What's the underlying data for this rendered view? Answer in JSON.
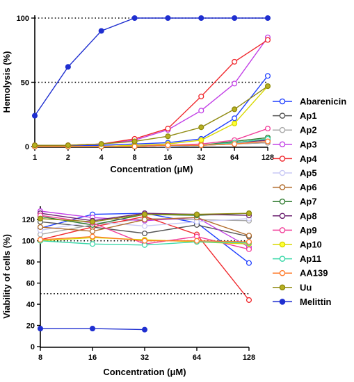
{
  "charts": [
    {
      "type": "line",
      "xlabel": "Concentration (μM)",
      "ylabel": "Hemolysis (%)",
      "xscale": "log2",
      "x_ticks": [
        "1",
        "2",
        "4",
        "8",
        "16",
        "32",
        "64",
        "128"
      ],
      "y_ticks": [
        "0",
        "50",
        "100"
      ],
      "ylim": [
        0,
        100
      ],
      "reference_lines": [
        50,
        100
      ],
      "series": [
        {
          "name": "Abarenicin",
          "x": [
            1,
            2,
            4,
            8,
            16,
            32,
            64,
            128
          ],
          "values": [
            0.5,
            0.5,
            1,
            2,
            3,
            6,
            22,
            55
          ]
        },
        {
          "name": "Ap1",
          "x": [
            1,
            2,
            4,
            8,
            16,
            32,
            64,
            128
          ],
          "values": [
            0,
            0,
            0,
            0,
            0,
            1,
            2,
            3
          ]
        },
        {
          "name": "Ap2",
          "x": [
            1,
            2,
            4,
            8,
            16,
            32,
            64,
            128
          ],
          "values": [
            0,
            0,
            0,
            0,
            0,
            1,
            2,
            3
          ]
        },
        {
          "name": "Ap3",
          "x": [
            1,
            2,
            4,
            8,
            16,
            32,
            64,
            128
          ],
          "values": [
            1,
            1,
            2,
            5,
            13,
            28,
            49,
            85
          ]
        },
        {
          "name": "Ap4",
          "x": [
            1,
            2,
            4,
            8,
            16,
            32,
            64,
            128
          ],
          "values": [
            1,
            1,
            2,
            6,
            14,
            39,
            66,
            83
          ]
        },
        {
          "name": "Ap5",
          "x": [
            1,
            2,
            4,
            8,
            16,
            32,
            64,
            128
          ],
          "values": [
            0,
            0,
            0,
            0,
            0,
            1,
            2,
            4
          ]
        },
        {
          "name": "Ap6",
          "x": [
            1,
            2,
            4,
            8,
            16,
            32,
            64,
            128
          ],
          "values": [
            0,
            0,
            0,
            0,
            1,
            1,
            3,
            6
          ]
        },
        {
          "name": "Ap7",
          "x": [
            1,
            2,
            4,
            8,
            16,
            32,
            64,
            128
          ],
          "values": [
            0,
            0,
            0,
            0,
            1,
            1,
            4,
            7
          ]
        },
        {
          "name": "Ap8",
          "x": [
            1,
            2,
            4,
            8,
            16,
            32,
            64,
            128
          ],
          "values": [
            0,
            0,
            0,
            0,
            1,
            1,
            3,
            5
          ]
        },
        {
          "name": "Ap9",
          "x": [
            1,
            2,
            4,
            8,
            16,
            32,
            64,
            128
          ],
          "values": [
            0,
            0,
            0,
            1,
            1,
            2,
            5,
            14
          ]
        },
        {
          "name": "Ap10",
          "x": [
            1,
            2,
            4,
            8,
            16,
            32,
            64,
            128
          ],
          "values": [
            0,
            0,
            0,
            1,
            2,
            5,
            18,
            47
          ]
        },
        {
          "name": "Ap11",
          "x": [
            1,
            2,
            4,
            8,
            16,
            32,
            64,
            128
          ],
          "values": [
            0,
            0,
            0,
            0,
            1,
            1,
            3,
            6
          ]
        },
        {
          "name": "AA139",
          "x": [
            1,
            2,
            4,
            8,
            16,
            32,
            64,
            128
          ],
          "values": [
            0,
            0,
            0,
            0,
            1,
            1,
            2,
            4
          ]
        },
        {
          "name": "Uu",
          "x": [
            1,
            2,
            4,
            8,
            16,
            32,
            64,
            128
          ],
          "values": [
            1,
            1,
            2,
            4,
            8,
            15,
            29,
            47
          ]
        },
        {
          "name": "Melittin",
          "x": [
            1,
            2,
            4,
            8,
            16,
            32,
            64,
            128
          ],
          "values": [
            24,
            62,
            90,
            100,
            100,
            100,
            100,
            100
          ]
        }
      ]
    },
    {
      "type": "line",
      "xlabel": "Concentration (μM)",
      "ylabel": "Viability of cells (%)",
      "xscale": "log2",
      "x_ticks": [
        "8",
        "16",
        "32",
        "64",
        "128"
      ],
      "y_ticks": [
        "0",
        "20",
        "40",
        "60",
        "80",
        "100",
        "120"
      ],
      "ylim": [
        0,
        130
      ],
      "reference_lines": [
        50,
        100
      ],
      "series": [
        {
          "name": "Abarenicin",
          "x": [
            8,
            16,
            32,
            64,
            128
          ],
          "values": [
            112,
            125,
            126,
            117,
            79
          ]
        },
        {
          "name": "Ap1",
          "x": [
            8,
            16,
            32,
            64,
            128
          ],
          "values": [
            118,
            113,
            107,
            115,
            104
          ]
        },
        {
          "name": "Ap2",
          "x": [
            8,
            16,
            32,
            64,
            128
          ],
          "values": [
            106,
            115,
            121,
            120,
            119
          ]
        },
        {
          "name": "Ap3",
          "x": [
            8,
            16,
            32,
            64,
            128
          ],
          "values": [
            128,
            122,
            119,
            122,
            94
          ]
        },
        {
          "name": "Ap4",
          "x": [
            8,
            16,
            32,
            64,
            128
          ],
          "values": [
            101,
            113,
            123,
            106,
            44
          ]
        },
        {
          "name": "Ap5",
          "x": [
            8,
            16,
            32,
            64,
            128
          ],
          "values": [
            110,
            118,
            114,
            118,
            121
          ]
        },
        {
          "name": "Ap6",
          "x": [
            8,
            16,
            32,
            64,
            128
          ],
          "values": [
            113,
            109,
            120,
            122,
            105
          ]
        },
        {
          "name": "Ap7",
          "x": [
            8,
            16,
            32,
            64,
            128
          ],
          "values": [
            123,
            115,
            125,
            124,
            126
          ]
        },
        {
          "name": "Ap8",
          "x": [
            8,
            16,
            32,
            64,
            128
          ],
          "values": [
            126,
            119,
            126,
            125,
            124
          ]
        },
        {
          "name": "Ap9",
          "x": [
            8,
            16,
            32,
            64,
            128
          ],
          "values": [
            124,
            117,
            97,
            104,
            92
          ]
        },
        {
          "name": "Ap10",
          "x": [
            8,
            16,
            32,
            64,
            128
          ],
          "values": [
            100,
            103,
            101,
            99,
            97
          ]
        },
        {
          "name": "Ap11",
          "x": [
            8,
            16,
            32,
            64,
            128
          ],
          "values": [
            100,
            97,
            96,
            99,
            98
          ]
        },
        {
          "name": "AA139",
          "x": [
            8,
            16,
            32,
            64,
            128
          ],
          "values": [
            101,
            104,
            100,
            100,
            99
          ]
        },
        {
          "name": "Uu",
          "x": [
            8,
            16,
            32,
            64,
            128
          ],
          "values": [
            121,
            118,
            125,
            125,
            126
          ]
        },
        {
          "name": "Melittin",
          "x": [
            8,
            16,
            32
          ],
          "values": [
            17,
            17,
            16
          ]
        }
      ]
    }
  ],
  "legend": {
    "placement": "right",
    "items": [
      {
        "name": "Abarenicin",
        "color": "#1f3fff",
        "fill": "#ffffff"
      },
      {
        "name": "Ap1",
        "color": "#555555",
        "fill": "#ffffff"
      },
      {
        "name": "Ap2",
        "color": "#a8a8a8",
        "fill": "#ffffff"
      },
      {
        "name": "Ap3",
        "color": "#c23fe6",
        "fill": "#ffffff"
      },
      {
        "name": "Ap4",
        "color": "#f0282d",
        "fill": "#ffffff"
      },
      {
        "name": "Ap5",
        "color": "#c9c9f5",
        "fill": "#ffffff"
      },
      {
        "name": "Ap6",
        "color": "#b06a2a",
        "fill": "#ffffff"
      },
      {
        "name": "Ap7",
        "color": "#2e7a2e",
        "fill": "#ffffff"
      },
      {
        "name": "Ap8",
        "color": "#6a1f6f",
        "fill": "#ffffff"
      },
      {
        "name": "Ap9",
        "color": "#f23f9a",
        "fill": "#ffffff"
      },
      {
        "name": "Ap10",
        "color": "#d8d800",
        "fill": "#ffff33"
      },
      {
        "name": "Ap11",
        "color": "#38d8a8",
        "fill": "#ffffff"
      },
      {
        "name": "AA139",
        "color": "#ff7a2a",
        "fill": "#ffffff"
      },
      {
        "name": "Uu",
        "color": "#8f8a10",
        "fill": "#b7b020"
      },
      {
        "name": "Melittin",
        "color": "#1f2fd0",
        "fill": "#1f2fd0"
      }
    ]
  }
}
